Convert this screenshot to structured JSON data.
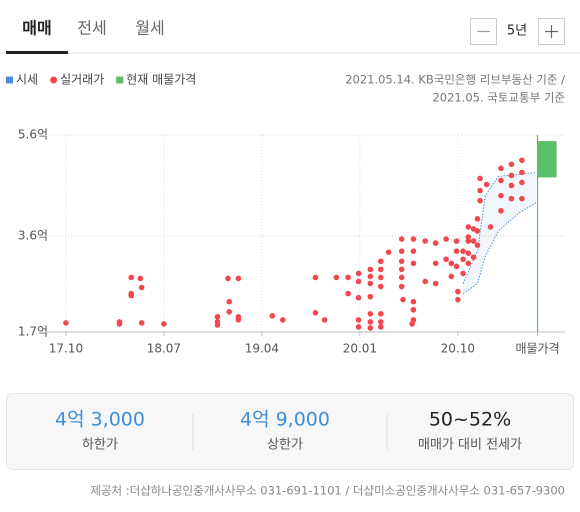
{
  "tabs": [
    "매매",
    "전세",
    "월세"
  ],
  "period": "5년",
  "source_notes": [
    "2021.05.14. KB국민은행 리브부동산 기준 /",
    "2021.05. 국토교통부 기준"
  ],
  "chart_data": {
    "type": "scatter",
    "xlim": [
      2017.59,
      2021.57
    ],
    "xticks": [
      {
        "value": 2017.75,
        "label": "17.10"
      },
      {
        "value": 2018.5,
        "label": "18.07"
      },
      {
        "value": 2019.25,
        "label": "19.04"
      },
      {
        "value": 2020.0,
        "label": "20.01"
      },
      {
        "value": 2020.75,
        "label": "20.10"
      },
      {
        "value": 2021.36,
        "label": "매물가격"
      }
    ],
    "ylim": [
      1.7,
      5.6
    ],
    "yticks": [
      {
        "value": 5.6,
        "label": "5.6억"
      },
      {
        "value": 3.6,
        "label": "3.6억"
      },
      {
        "value": 1.7,
        "label": "1.7억"
      }
    ],
    "grid": true,
    "series": [
      {
        "name": "시세",
        "type": "band",
        "color": "#4a90d9",
        "x": [
          2020.79,
          2020.9,
          2020.96,
          2021.06,
          2021.22,
          2021.35
        ],
        "low": [
          2.46,
          2.66,
          3.2,
          3.7,
          4.06,
          4.26
        ],
        "high": [
          2.66,
          3.3,
          4.4,
          4.78,
          4.82,
          4.86
        ]
      },
      {
        "name": "실거래가",
        "type": "scatter",
        "color": "#f0484e",
        "x": [
          2017.75,
          2018.16,
          2018.16,
          2018.25,
          2018.32,
          2018.25,
          2018.33,
          2018.25,
          2018.33,
          2018.5,
          2018.91,
          2018.91,
          2018.91,
          2018.99,
          2019.07,
          2019.0,
          2019.0,
          2019.07,
          2019.07,
          2019.33,
          2019.41,
          2019.66,
          2019.66,
          2019.73,
          2019.82,
          2019.91,
          2019.91,
          2019.99,
          2019.99,
          2019.99,
          2019.99,
          2019.99,
          2020.08,
          2020.08,
          2020.08,
          2020.08,
          2020.08,
          2020.08,
          2020.08,
          2020.16,
          2020.16,
          2020.16,
          2020.16,
          2020.16,
          2020.16,
          2020.16,
          2020.22,
          2020.32,
          2020.32,
          2020.32,
          2020.32,
          2020.32,
          2020.32,
          2020.33,
          2020.41,
          2020.41,
          2020.41,
          2020.41,
          2020.41,
          2020.41,
          2020.4,
          2020.5,
          2020.5,
          2020.58,
          2020.58,
          2020.58,
          2020.66,
          2020.66,
          2020.7,
          2020.7,
          2020.74,
          2020.74,
          2020.74,
          2020.75,
          2020.75,
          2020.79,
          2020.79,
          2020.79,
          2020.83,
          2020.83,
          2020.83,
          2020.83,
          2020.83,
          2020.87,
          2020.87,
          2020.87,
          2020.9,
          2020.9,
          2020.9,
          2020.92,
          2020.92,
          2020.92,
          2020.97,
          2021.0,
          2021.08,
          2021.08,
          2021.08,
          2021.08,
          2021.16,
          2021.16,
          2021.16,
          2021.16,
          2021.24,
          2021.24,
          2021.24,
          2021.24
        ],
        "values": [
          1.88,
          1.9,
          1.86,
          2.78,
          2.76,
          2.46,
          2.58,
          2.42,
          1.88,
          1.86,
          2.0,
          1.9,
          1.84,
          2.76,
          2.76,
          2.3,
          2.1,
          2.0,
          1.94,
          2.02,
          1.94,
          2.78,
          2.08,
          1.94,
          2.78,
          2.78,
          2.46,
          2.86,
          2.7,
          2.38,
          1.94,
          1.8,
          2.94,
          2.8,
          2.66,
          2.4,
          2.06,
          1.9,
          1.78,
          3.1,
          2.94,
          2.78,
          2.6,
          2.06,
          1.9,
          1.8,
          3.28,
          3.54,
          3.3,
          3.1,
          2.94,
          2.78,
          2.6,
          2.34,
          3.54,
          3.3,
          3.06,
          2.3,
          2.14,
          1.94,
          1.86,
          3.5,
          2.7,
          3.46,
          3.06,
          2.66,
          3.54,
          3.14,
          3.06,
          2.8,
          3.5,
          3.3,
          3.0,
          2.5,
          2.34,
          3.3,
          3.14,
          2.86,
          3.78,
          3.58,
          3.5,
          3.26,
          3.06,
          3.74,
          3.5,
          3.18,
          3.94,
          3.7,
          3.42,
          4.74,
          4.5,
          4.3,
          4.62,
          3.78,
          4.94,
          4.7,
          4.4,
          4.1,
          5.02,
          4.8,
          4.6,
          4.34,
          5.1,
          4.86,
          4.66,
          4.34
        ]
      },
      {
        "name": "현재 매물가격",
        "type": "range",
        "color": "#5cbf6a",
        "x": [
          2021.36
        ],
        "low": [
          4.76
        ],
        "high": [
          5.48
        ]
      }
    ]
  },
  "summary": [
    {
      "value": "4억 3,000",
      "label": "하한가"
    },
    {
      "value": "4억 9,000",
      "label": "상한가"
    },
    {
      "value": "50~52%",
      "label": "매매가 대비 전세가"
    }
  ],
  "footer": "제공처 :더샵하나공인중개사사무소 031-691-1101 / 더샵미소공인중개사사무소 031-657-9300"
}
